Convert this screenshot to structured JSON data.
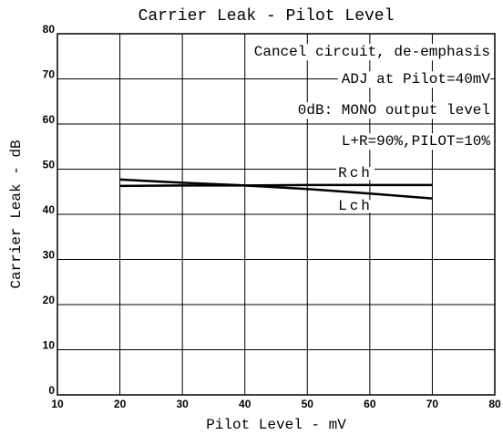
{
  "chart_data": {
    "type": "line",
    "title": "Carrier Leak - Pilot Level",
    "x_label": "Pilot Level - mV",
    "y_label": "Carrier Leak - dB",
    "annotations": [
      "Cancel circuit, de-emphasis",
      "ADJ at Pilot=40mV",
      "0dB: MONO output level",
      "L+R=90%,PILOT=10%"
    ],
    "x": [
      20,
      30,
      40,
      50,
      60,
      70
    ],
    "series": [
      {
        "name": "Rch",
        "color": "#000000",
        "values": [
          46.3,
          46.4,
          46.4,
          46.5,
          46.5,
          46.5
        ]
      },
      {
        "name": "Lch",
        "color": "#000000",
        "values": [
          47.7,
          47.0,
          46.4,
          45.6,
          44.6,
          43.5
        ]
      }
    ],
    "xlim": [
      10,
      80
    ],
    "xticks": [
      10,
      20,
      30,
      40,
      50,
      60,
      70,
      80
    ],
    "ylim": [
      0,
      80
    ],
    "yticks": [
      0,
      10,
      20,
      30,
      40,
      50,
      60,
      70,
      80
    ],
    "grid": true
  }
}
